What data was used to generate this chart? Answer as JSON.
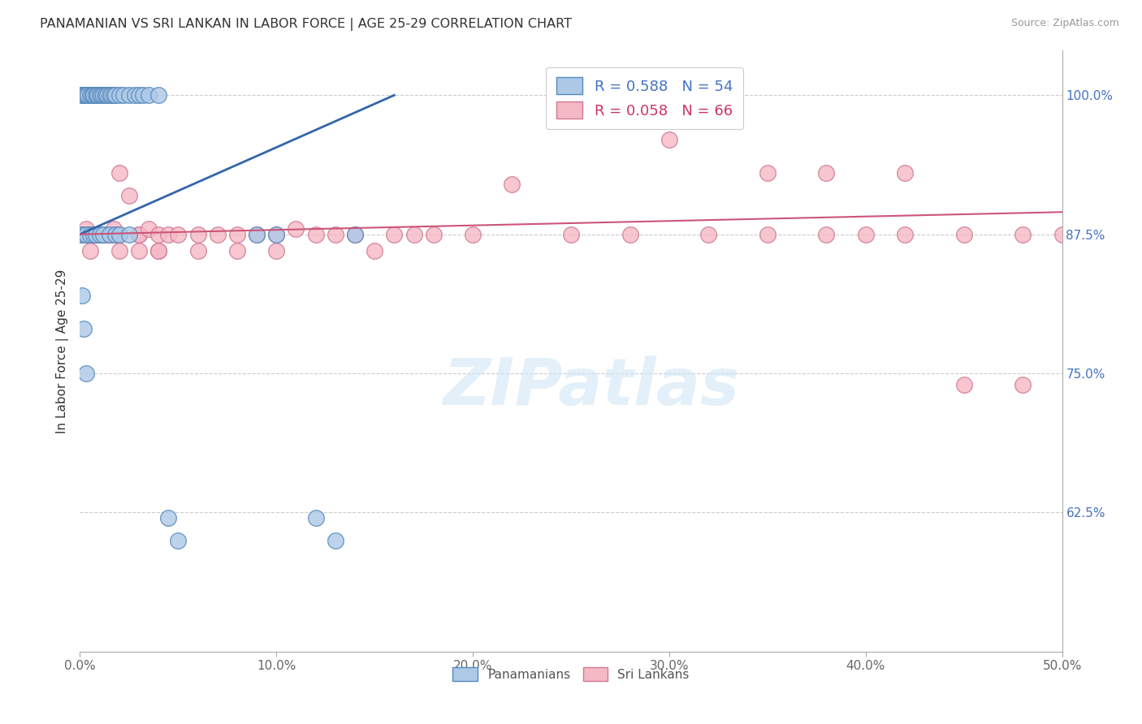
{
  "title": "PANAMANIAN VS SRI LANKAN IN LABOR FORCE | AGE 25-29 CORRELATION CHART",
  "source": "Source: ZipAtlas.com",
  "ylabel": "In Labor Force | Age 25-29",
  "xlabel_ticks": [
    "0.0%",
    "10.0%",
    "20.0%",
    "30.0%",
    "40.0%",
    "50.0%"
  ],
  "xlabel_vals": [
    0.0,
    0.1,
    0.2,
    0.3,
    0.4,
    0.5
  ],
  "ylabel_ticks_right": [
    "100.0%",
    "87.5%",
    "75.0%",
    "62.5%"
  ],
  "ylabel_vals_right": [
    1.0,
    0.875,
    0.75,
    0.625
  ],
  "xlim": [
    0.0,
    0.5
  ],
  "ylim": [
    0.5,
    1.04
  ],
  "legend_bottom": [
    "Panamanians",
    "Sri Lankans"
  ],
  "blue_color": "#adc9e8",
  "blue_edge_color": "#5588bb",
  "blue_line_color": "#3366aa",
  "pink_color": "#f5b8c5",
  "pink_edge_color": "#d07890",
  "pink_line_color": "#cc5577",
  "blue_legend_color": "#adc9e8",
  "pink_legend_color": "#f5b8c5",
  "watermark": "ZIPatlas",
  "blue_r_label": "R = 0.588   N = 54",
  "pink_r_label": "R = 0.058   N = 66",
  "blue_points_x": [
    0.001,
    0.001,
    0.002,
    0.002,
    0.003,
    0.003,
    0.004,
    0.005,
    0.006,
    0.007,
    0.007,
    0.008,
    0.009,
    0.009,
    0.01,
    0.011,
    0.012,
    0.013,
    0.013,
    0.014,
    0.015,
    0.016,
    0.017,
    0.018,
    0.02,
    0.022,
    0.025,
    0.028,
    0.03,
    0.032,
    0.035,
    0.04,
    0.001,
    0.002,
    0.003,
    0.005,
    0.007,
    0.008,
    0.01,
    0.012,
    0.015,
    0.018,
    0.02,
    0.025,
    0.001,
    0.002,
    0.003,
    0.045,
    0.05,
    0.09,
    0.1,
    0.12,
    0.13,
    0.14
  ],
  "blue_points_y": [
    1.0,
    1.0,
    1.0,
    1.0,
    1.0,
    1.0,
    1.0,
    1.0,
    1.0,
    1.0,
    1.0,
    1.0,
    1.0,
    1.0,
    1.0,
    1.0,
    1.0,
    1.0,
    1.0,
    1.0,
    1.0,
    1.0,
    1.0,
    1.0,
    1.0,
    1.0,
    1.0,
    1.0,
    1.0,
    1.0,
    1.0,
    1.0,
    0.875,
    0.875,
    0.875,
    0.875,
    0.875,
    0.875,
    0.875,
    0.875,
    0.875,
    0.875,
    0.875,
    0.875,
    0.82,
    0.79,
    0.75,
    0.62,
    0.6,
    0.875,
    0.875,
    0.62,
    0.6,
    0.875
  ],
  "pink_points_x": [
    0.001,
    0.002,
    0.003,
    0.004,
    0.005,
    0.006,
    0.007,
    0.008,
    0.009,
    0.01,
    0.011,
    0.012,
    0.013,
    0.014,
    0.015,
    0.016,
    0.017,
    0.018,
    0.02,
    0.02,
    0.025,
    0.03,
    0.03,
    0.035,
    0.04,
    0.04,
    0.045,
    0.05,
    0.06,
    0.07,
    0.08,
    0.09,
    0.1,
    0.11,
    0.12,
    0.13,
    0.14,
    0.15,
    0.16,
    0.17,
    0.18,
    0.2,
    0.22,
    0.25,
    0.28,
    0.3,
    0.32,
    0.35,
    0.38,
    0.4,
    0.42,
    0.45,
    0.48,
    0.5,
    0.02,
    0.03,
    0.04,
    0.06,
    0.08,
    0.1,
    0.25,
    0.35,
    0.38,
    0.42,
    0.45,
    0.48
  ],
  "pink_points_y": [
    0.875,
    0.875,
    0.88,
    0.875,
    0.86,
    0.875,
    0.875,
    0.875,
    0.875,
    0.875,
    0.875,
    0.875,
    0.875,
    0.875,
    0.875,
    0.875,
    0.88,
    0.875,
    0.93,
    0.875,
    0.91,
    0.875,
    0.875,
    0.88,
    0.875,
    0.86,
    0.875,
    0.875,
    0.875,
    0.875,
    0.875,
    0.875,
    0.875,
    0.88,
    0.875,
    0.875,
    0.875,
    0.86,
    0.875,
    0.875,
    0.875,
    0.875,
    0.92,
    0.875,
    0.875,
    0.96,
    0.875,
    0.875,
    0.875,
    0.875,
    0.875,
    0.875,
    0.875,
    0.875,
    0.86,
    0.86,
    0.86,
    0.86,
    0.86,
    0.86,
    1.0,
    0.93,
    0.93,
    0.93,
    0.74,
    0.74
  ],
  "blue_line_x": [
    0.0,
    0.16
  ],
  "blue_line_y": [
    0.875,
    1.0
  ],
  "pink_line_x": [
    0.0,
    0.5
  ],
  "pink_line_y": [
    0.875,
    0.895
  ]
}
